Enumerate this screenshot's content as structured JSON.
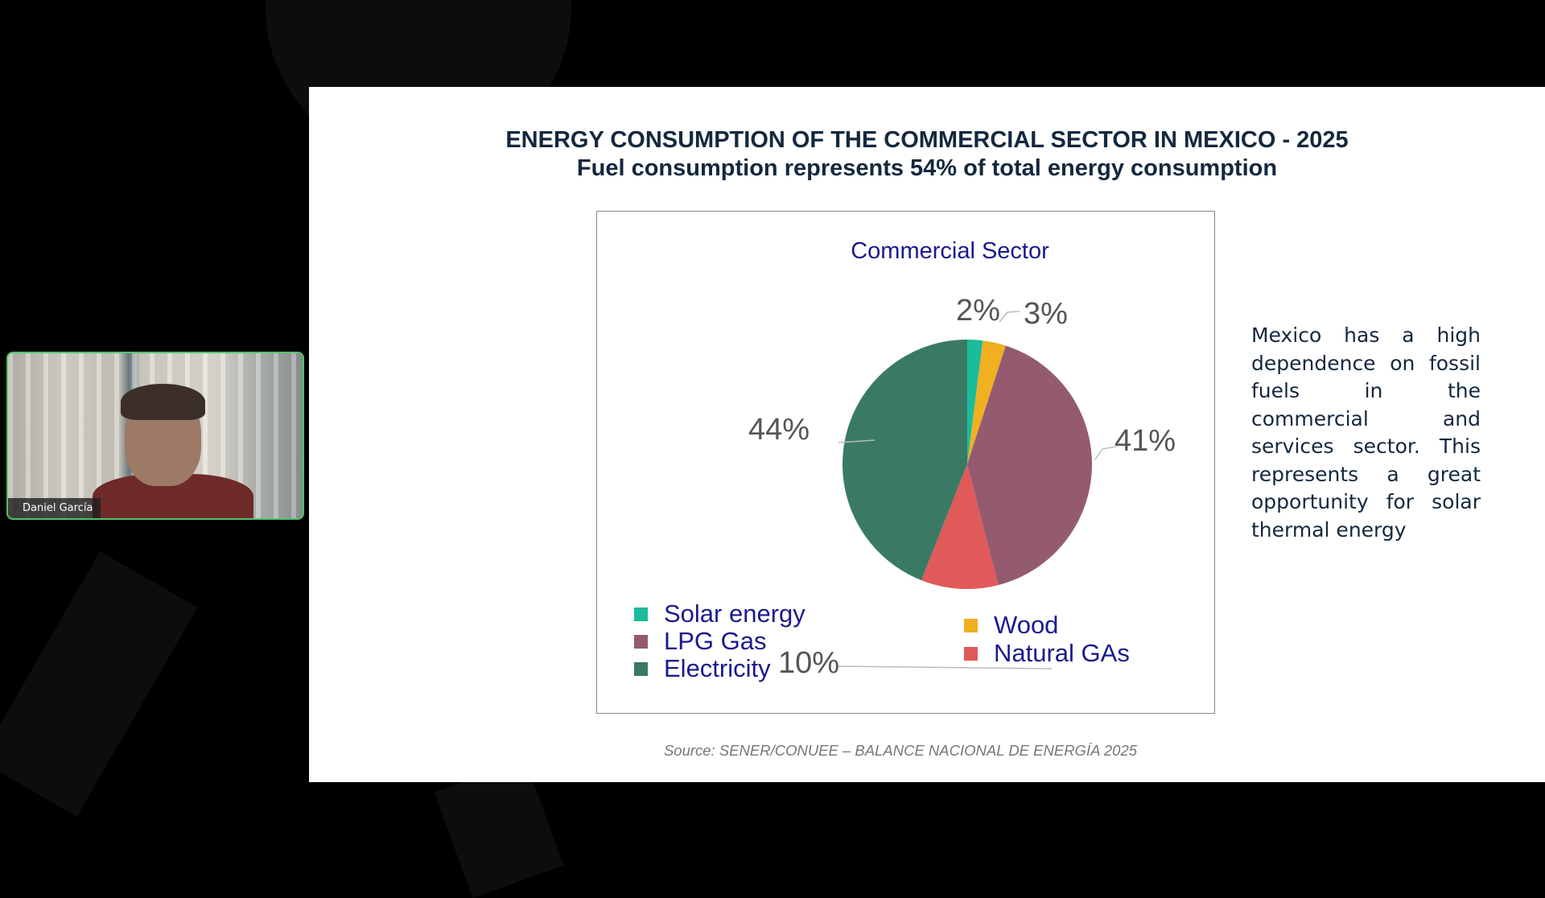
{
  "slide": {
    "title_line1": "ENERGY CONSUMPTION OF THE COMMERCIAL SECTOR IN MEXICO - 2025",
    "title_line2": "Fuel consumption represents 54% of total energy consumption",
    "side_text": "Mexico has a high dependence on fossil fuels in the commercial and services sector. This represents a great opportunity for solar thermal energy",
    "source": "Source: SENER/CONUEE – BALANCE NACIONAL DE ENERGÍA 2025"
  },
  "chart_data": {
    "type": "pie",
    "title": "Commercial Sector",
    "categories": [
      "Solar energy",
      "Wood",
      "LPG Gas",
      "Natural GAs",
      "Electricity"
    ],
    "values": [
      2,
      3,
      41,
      10,
      44
    ],
    "labels": [
      "2%",
      "3%",
      "41%",
      "10%",
      "44%"
    ],
    "colors": [
      "#1abc9c",
      "#f0b020",
      "#945a70",
      "#e05a5a",
      "#3a7a64"
    ],
    "legend": [
      "Solar energy",
      "LPG Gas",
      "Electricity",
      "Wood",
      "Natural GAs"
    ],
    "legend_placement": "bottom"
  },
  "participant": {
    "name": "Daniel García"
  }
}
